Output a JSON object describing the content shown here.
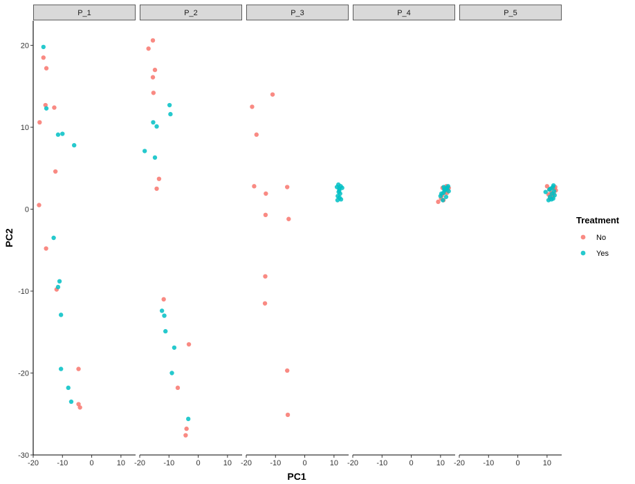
{
  "chart_data": {
    "type": "scatter",
    "xlabel": "PC1",
    "ylabel": "PC2",
    "xlim": [
      -20,
      15
    ],
    "ylim": [
      -30,
      23
    ],
    "x_ticks": [
      -20,
      -10,
      0,
      10
    ],
    "y_ticks": [
      -30,
      -20,
      -10,
      0,
      10,
      20
    ],
    "x_tick_labels": [
      "-20",
      "-10",
      "0",
      "10"
    ],
    "y_tick_labels": [
      "-30",
      "-20",
      "-10",
      "0",
      "10",
      "20"
    ],
    "grid": false,
    "legend": {
      "title": "Treatment",
      "placement": "right",
      "entries": [
        {
          "label": "No",
          "color": "#F8766D"
        },
        {
          "label": "Yes",
          "color": "#00BFC4"
        }
      ]
    },
    "panels": [
      {
        "label": "P_1",
        "series": [
          {
            "name": "No",
            "points": [
              [
                -16.5,
                18.5
              ],
              [
                -15.5,
                17.2
              ],
              [
                -15.8,
                12.7
              ],
              [
                -12.8,
                12.4
              ],
              [
                -17.8,
                10.6
              ],
              [
                -12.4,
                4.6
              ],
              [
                -18,
                0.5
              ],
              [
                -15.6,
                -4.8
              ],
              [
                -12,
                -9.8
              ],
              [
                -4.5,
                -19.5
              ],
              [
                -4.5,
                -23.8
              ],
              [
                -4,
                -24.2
              ]
            ]
          },
          {
            "name": "Yes",
            "points": [
              [
                -16.5,
                19.8
              ],
              [
                -15.5,
                12.3
              ],
              [
                -11.5,
                9.1
              ],
              [
                -10,
                9.2
              ],
              [
                -6,
                7.8
              ],
              [
                -13,
                -3.5
              ],
              [
                -11.5,
                -9.5
              ],
              [
                -11,
                -8.8
              ],
              [
                -10.5,
                -12.9
              ],
              [
                -10.5,
                -19.5
              ],
              [
                -8,
                -21.8
              ],
              [
                -7,
                -23.5
              ]
            ]
          }
        ]
      },
      {
        "label": "P_2",
        "series": [
          {
            "name": "No",
            "points": [
              [
                -15.5,
                20.6
              ],
              [
                -17,
                19.6
              ],
              [
                -14.8,
                17
              ],
              [
                -15.5,
                16.1
              ],
              [
                -15.3,
                14.2
              ],
              [
                -13.4,
                3.7
              ],
              [
                -14.2,
                2.5
              ],
              [
                -11.8,
                -11
              ],
              [
                -3.2,
                -16.5
              ],
              [
                -7,
                -21.8
              ],
              [
                -4,
                -26.8
              ],
              [
                -4.3,
                -27.6
              ]
            ]
          },
          {
            "name": "Yes",
            "points": [
              [
                -9.8,
                12.7
              ],
              [
                -9.5,
                11.6
              ],
              [
                -15.4,
                10.6
              ],
              [
                -14.2,
                10.1
              ],
              [
                -18.3,
                7.1
              ],
              [
                -14.8,
                6.3
              ],
              [
                -12.4,
                -12.4
              ],
              [
                -11.6,
                -13
              ],
              [
                -11.2,
                -14.9
              ],
              [
                -8.2,
                -16.9
              ],
              [
                -9,
                -20
              ],
              [
                -3.4,
                -25.6
              ]
            ]
          }
        ]
      },
      {
        "label": "P_3",
        "series": [
          {
            "name": "No",
            "points": [
              [
                -11,
                14
              ],
              [
                -18,
                12.5
              ],
              [
                -16.5,
                9.1
              ],
              [
                -17.3,
                2.8
              ],
              [
                -6,
                2.7
              ],
              [
                -13.3,
                1.9
              ],
              [
                -13.4,
                -0.7
              ],
              [
                -5.5,
                -1.2
              ],
              [
                -13.5,
                -8.2
              ],
              [
                -13.6,
                -11.5
              ],
              [
                -6,
                -19.7
              ],
              [
                -5.8,
                -25.1
              ]
            ]
          },
          {
            "name": "Yes",
            "points": [
              [
                11,
                2.7
              ],
              [
                12.3,
                2.8
              ],
              [
                11.8,
                2.5
              ],
              [
                11.5,
                3
              ],
              [
                12.8,
                2.6
              ],
              [
                11.6,
                2.1
              ],
              [
                12.1,
                1.9
              ],
              [
                11.3,
                1.6
              ],
              [
                11.9,
                1.4
              ],
              [
                12.4,
                1.2
              ],
              [
                11.2,
                1.1
              ],
              [
                11.8,
                2.3
              ]
            ]
          }
        ]
      },
      {
        "label": "P_4",
        "series": [
          {
            "name": "No",
            "points": [
              [
                9.2,
                0.9
              ],
              [
                10.7,
                2.6
              ],
              [
                12,
                2.8
              ],
              [
                12.5,
                2.4
              ],
              [
                11.2,
                2
              ],
              [
                10.5,
                1.7
              ],
              [
                12.8,
                2.6
              ],
              [
                11.6,
                2.2
              ],
              [
                10.2,
                1.3
              ],
              [
                12.2,
                2
              ],
              [
                11,
                1.1
              ],
              [
                11.7,
                2.5
              ]
            ]
          },
          {
            "name": "Yes",
            "points": [
              [
                10,
                1.6
              ],
              [
                11,
                2
              ],
              [
                12,
                2.5
              ],
              [
                12.6,
                2.8
              ],
              [
                11.5,
                2.3
              ],
              [
                10.8,
                1.1
              ],
              [
                12.3,
                2.6
              ],
              [
                11.3,
                2.4
              ],
              [
                10.3,
                1.9
              ],
              [
                11.9,
                1.5
              ],
              [
                12.8,
                2.2
              ],
              [
                11.1,
                2.7
              ]
            ]
          }
        ]
      },
      {
        "label": "P_5",
        "series": [
          {
            "name": "No",
            "points": [
              [
                10,
                2.8
              ],
              [
                12.5,
                2.5
              ],
              [
                13,
                2.3
              ],
              [
                11.5,
                2
              ],
              [
                10.5,
                1.8
              ],
              [
                12,
                1.5
              ],
              [
                11,
                1.3
              ],
              [
                12.8,
                2.7
              ],
              [
                11.8,
                2.6
              ],
              [
                10.8,
                2.4
              ],
              [
                12.3,
                1.9
              ],
              [
                11.3,
                1.7
              ]
            ]
          },
          {
            "name": "Yes",
            "points": [
              [
                11,
                1.5
              ],
              [
                12,
                2.7
              ],
              [
                12.4,
                2.2
              ],
              [
                11.5,
                1.2
              ],
              [
                10.5,
                1.1
              ],
              [
                12.2,
                2.9
              ],
              [
                11.2,
                2.5
              ],
              [
                9.5,
                2.1
              ],
              [
                12.6,
                1.7
              ],
              [
                11.7,
                1.9
              ],
              [
                10.8,
                2.4
              ],
              [
                12.1,
                1.3
              ]
            ]
          }
        ]
      }
    ]
  }
}
